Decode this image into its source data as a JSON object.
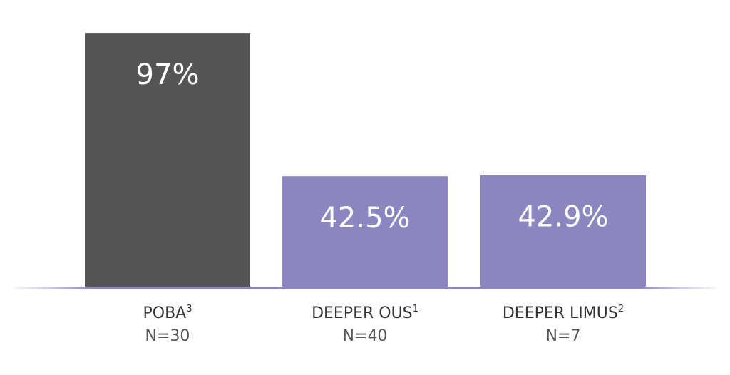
{
  "chart_data": {
    "type": "bar",
    "categories": [
      "POBA",
      "DEEPER OUS",
      "DEEPER LIMUS"
    ],
    "category_superscripts": [
      "3",
      "1",
      "2"
    ],
    "sample_sizes": [
      "N=30",
      "N=40",
      "N=7"
    ],
    "values": [
      97,
      42.5,
      42.9
    ],
    "value_labels": [
      "97%",
      "42.5%",
      "42.9%"
    ],
    "bar_colors": [
      "#555557",
      "#8b86bf",
      "#8b86bf"
    ],
    "baseline_color": "#8b86bf",
    "ylim": [
      0,
      100
    ],
    "grid": false,
    "legend": "none"
  }
}
